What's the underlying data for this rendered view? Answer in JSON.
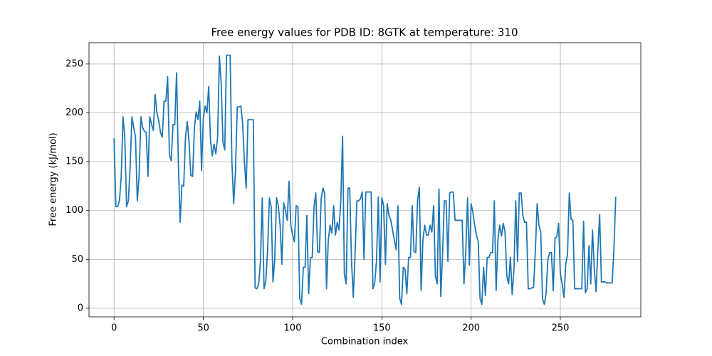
{
  "chart_data": {
    "type": "line",
    "title": "Free energy values for PDB ID: 8GTK at temperature: 310",
    "xlabel": "Combination index",
    "ylabel": "Free energy (kJ/mol)",
    "color": "#1f77b4",
    "grid": true,
    "xlim": [
      -14.05,
      295.05
    ],
    "ylim": [
      -8.75,
      271.75
    ],
    "xticks": [
      0,
      50,
      100,
      150,
      200,
      250
    ],
    "yticks": [
      0,
      50,
      100,
      150,
      200,
      250
    ],
    "x": [
      0,
      1,
      2,
      3,
      4,
      5,
      6,
      7,
      8,
      9,
      10,
      11,
      12,
      13,
      14,
      15,
      16,
      17,
      18,
      19,
      20,
      21,
      22,
      23,
      24,
      25,
      26,
      27,
      28,
      29,
      30,
      31,
      32,
      33,
      34,
      35,
      36,
      37,
      38,
      39,
      40,
      41,
      42,
      43,
      44,
      45,
      46,
      47,
      48,
      49,
      50,
      51,
      52,
      53,
      54,
      55,
      56,
      57,
      58,
      59,
      60,
      61,
      62,
      63,
      64,
      65,
      66,
      67,
      68,
      69,
      70,
      71,
      72,
      73,
      74,
      75,
      76,
      77,
      78,
      79,
      80,
      81,
      82,
      83,
      84,
      85,
      86,
      87,
      88,
      89,
      90,
      91,
      92,
      93,
      94,
      95,
      96,
      97,
      98,
      99,
      100,
      101,
      102,
      103,
      104,
      105,
      106,
      107,
      108,
      109,
      110,
      111,
      112,
      113,
      114,
      115,
      116,
      117,
      118,
      119,
      120,
      121,
      122,
      123,
      124,
      125,
      126,
      127,
      128,
      129,
      130,
      131,
      132,
      133,
      134,
      135,
      136,
      137,
      138,
      139,
      140,
      141,
      142,
      143,
      144,
      145,
      146,
      147,
      148,
      149,
      150,
      151,
      152,
      153,
      154,
      155,
      156,
      157,
      158,
      159,
      160,
      161,
      162,
      163,
      164,
      165,
      166,
      167,
      168,
      169,
      170,
      171,
      172,
      173,
      174,
      175,
      176,
      177,
      178,
      179,
      180,
      181,
      182,
      183,
      184,
      185,
      186,
      187,
      188,
      189,
      190,
      191,
      192,
      193,
      194,
      195,
      196,
      197,
      198,
      199,
      200,
      201,
      202,
      203,
      204,
      205,
      206,
      207,
      208,
      209,
      210,
      211,
      212,
      213,
      214,
      215,
      216,
      217,
      218,
      219,
      220,
      221,
      222,
      223,
      224,
      225,
      226,
      227,
      228,
      229,
      230,
      231,
      232,
      233,
      234,
      235,
      236,
      237,
      238,
      239,
      240,
      241,
      242,
      243,
      244,
      245,
      246,
      247,
      248,
      249,
      250,
      251,
      252,
      253,
      254,
      255,
      256,
      257,
      258,
      259,
      260,
      261,
      262,
      263,
      264,
      265,
      266,
      267,
      268,
      269,
      270,
      271,
      272,
      273,
      274,
      275,
      276,
      277,
      278,
      279,
      280,
      281
    ],
    "values": [
      174,
      104,
      104,
      110,
      135,
      196,
      175,
      104,
      110,
      145,
      196,
      185,
      175,
      110,
      135,
      196,
      185,
      181,
      180,
      135,
      196,
      188,
      182,
      219,
      200,
      192,
      180,
      175,
      212,
      212,
      237,
      157,
      151,
      188,
      188,
      241,
      150,
      88,
      126,
      125,
      175,
      191,
      170,
      136,
      135,
      185,
      201,
      193,
      212,
      141,
      195,
      207,
      200,
      227,
      172,
      156,
      168,
      158,
      175,
      258,
      230,
      170,
      162,
      259,
      259,
      259,
      150,
      107,
      140,
      206,
      206,
      207,
      190,
      150,
      123,
      193,
      193,
      193,
      193,
      21,
      20,
      25,
      48,
      113,
      20,
      28,
      60,
      113,
      104,
      27,
      50,
      113,
      105,
      85,
      45,
      108,
      100,
      90,
      130,
      85,
      75,
      68,
      105,
      104,
      10,
      4,
      42,
      42,
      95,
      15,
      52,
      52,
      104,
      118,
      58,
      57,
      112,
      123,
      117,
      20,
      70,
      85,
      77,
      105,
      75,
      88,
      80,
      110,
      176,
      35,
      25,
      123,
      123,
      48,
      11,
      56,
      110,
      110,
      112,
      119,
      50,
      119,
      119,
      119,
      119,
      20,
      26,
      48,
      114,
      27,
      113,
      105,
      45,
      107,
      95,
      90,
      80,
      70,
      60,
      105,
      10,
      4,
      42,
      40,
      15,
      52,
      52,
      105,
      58,
      57,
      110,
      124,
      18,
      70,
      85,
      75,
      75,
      85,
      78,
      105,
      33,
      25,
      122,
      12,
      55,
      110,
      110,
      48,
      118,
      119,
      119,
      90,
      90,
      90,
      90,
      90,
      25,
      58,
      113,
      44,
      107,
      98,
      85,
      75,
      68,
      10,
      4,
      42,
      13,
      52,
      52,
      57,
      57,
      110,
      18,
      70,
      85,
      74,
      87,
      78,
      33,
      25,
      52,
      14,
      40,
      110,
      48,
      118,
      118,
      95,
      88,
      88,
      20,
      20,
      21,
      21,
      60,
      107,
      85,
      78,
      10,
      4,
      15,
      50,
      57,
      57,
      18,
      72,
      73,
      87,
      35,
      25,
      11,
      45,
      55,
      118,
      91,
      90,
      20,
      20,
      20,
      20,
      20,
      89,
      16,
      20,
      64,
      25,
      80,
      40,
      17,
      60,
      96,
      27,
      27,
      27,
      26,
      26,
      26,
      26,
      60,
      114
    ]
  }
}
